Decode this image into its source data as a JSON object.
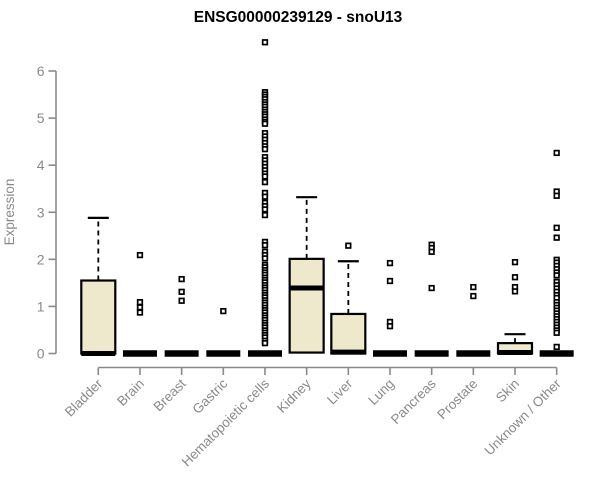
{
  "page": {
    "background": "#FFFFFF"
  },
  "chart_data": {
    "type": "boxplot",
    "title": "ENSG00000239129 - snoU13",
    "ylabel": "Expression",
    "xlabel": "",
    "ylim": [
      0,
      6.8
    ],
    "yticks": [
      0,
      1,
      2,
      3,
      4,
      5,
      6
    ],
    "grid": false,
    "legend": false,
    "x_labels_rotated_degrees": 45,
    "colors": {
      "box_fill": "#EEE8CD",
      "box_border": "#000000",
      "median": "#000000",
      "whisker": "#000000",
      "outlier": "#000000",
      "outlier_fill": "#FFFFFF",
      "axis": "#8A8A8A",
      "axis_text": "#8A8A8A",
      "title_text": "#000000",
      "background": "#FFFFFF"
    },
    "categories": [
      "Bladder",
      "Brain",
      "Breast",
      "Gastric",
      "Hematopoietic cells",
      "Kidney",
      "Liver",
      "Lung",
      "Pancreas",
      "Prostate",
      "Skin",
      "Unknown / Other"
    ],
    "series": [
      {
        "name": "Bladder",
        "q1": 0,
        "median": 0,
        "q3": 1.55,
        "whisker_low": 0,
        "whisker_high": 2.88,
        "outliers": []
      },
      {
        "name": "Brain",
        "q1": 0,
        "median": 0,
        "q3": 0,
        "whisker_low": 0,
        "whisker_high": 0,
        "outliers": [
          2.09,
          1.09,
          0.98,
          0.87
        ]
      },
      {
        "name": "Breast",
        "q1": 0,
        "median": 0,
        "q3": 0,
        "whisker_low": 0,
        "whisker_high": 0,
        "outliers": [
          1.58,
          1.31,
          1.12
        ]
      },
      {
        "name": "Gastric",
        "q1": 0,
        "median": 0,
        "q3": 0,
        "whisker_low": 0,
        "whisker_high": 0,
        "outliers": [
          0.9
        ]
      },
      {
        "name": "Hematopoietic cells",
        "q1": 0,
        "median": 0,
        "q3": 0,
        "whisker_low": 0,
        "whisker_high": 0,
        "outliers": [
          6.61,
          5.55,
          5.5,
          5.45,
          5.4,
          5.34,
          5.29,
          5.24,
          5.18,
          5.13,
          5.08,
          5.03,
          4.97,
          4.92,
          4.88,
          4.68,
          4.61,
          4.54,
          4.47,
          4.4,
          4.34,
          4.17,
          4.1,
          4.03,
          3.96,
          3.89,
          3.82,
          3.76,
          3.64,
          3.41,
          3.33,
          3.2,
          3.13,
          3.06,
          2.94,
          2.37,
          2.3,
          2.16,
          2.09,
          2.02,
          1.88,
          1.83,
          1.77,
          1.72,
          1.67,
          1.61,
          1.56,
          1.51,
          1.45,
          1.4,
          1.35,
          1.29,
          1.24,
          1.19,
          1.13,
          1.08,
          1.03,
          0.97,
          0.92,
          0.87,
          0.81,
          0.76,
          0.71,
          0.65,
          0.6,
          0.55,
          0.49,
          0.44,
          0.39,
          0.34,
          0.27,
          0.22
        ]
      },
      {
        "name": "Kidney",
        "q1": 0.02,
        "median": 1.39,
        "q3": 2.01,
        "whisker_low": 0.02,
        "whisker_high": 3.32,
        "outliers": []
      },
      {
        "name": "Liver",
        "q1": 0,
        "median": 0.03,
        "q3": 0.84,
        "whisker_low": 0,
        "whisker_high": 1.96,
        "outliers": [
          2.29
        ]
      },
      {
        "name": "Lung",
        "q1": 0,
        "median": 0,
        "q3": 0,
        "whisker_low": 0,
        "whisker_high": 0,
        "outliers": [
          1.92,
          1.54,
          0.67,
          0.58
        ]
      },
      {
        "name": "Pancreas",
        "q1": 0,
        "median": 0,
        "q3": 0,
        "whisker_low": 0,
        "whisker_high": 0,
        "outliers": [
          2.31,
          2.24,
          2.16,
          1.39
        ]
      },
      {
        "name": "Prostate",
        "q1": 0,
        "median": 0,
        "q3": 0,
        "whisker_low": 0,
        "whisker_high": 0,
        "outliers": [
          1.41,
          1.22
        ]
      },
      {
        "name": "Skin",
        "q1": 0,
        "median": 0.02,
        "q3": 0.22,
        "whisker_low": 0,
        "whisker_high": 0.41,
        "outliers": [
          1.94,
          1.62,
          1.41,
          1.32
        ]
      },
      {
        "name": "Unknown / Other",
        "q1": 0,
        "median": 0,
        "q3": 0,
        "whisker_low": 0,
        "whisker_high": 0,
        "outliers": [
          4.26,
          3.44,
          3.35,
          2.67,
          2.46,
          1.99,
          1.93,
          1.86,
          1.79,
          1.72,
          1.66,
          1.52,
          1.45,
          1.38,
          1.31,
          1.24,
          1.18,
          1.09,
          1.03,
          0.97,
          0.91,
          0.85,
          0.79,
          0.73,
          0.67,
          0.61,
          0.55,
          0.49,
          0.44,
          0.14
        ]
      }
    ]
  }
}
